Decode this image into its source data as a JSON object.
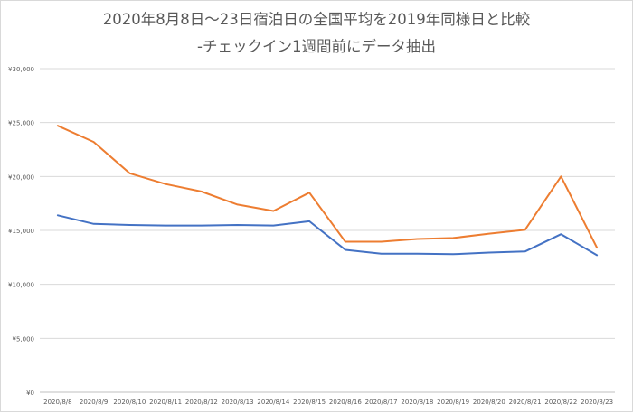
{
  "chart_data": {
    "type": "line",
    "title": "2020年8月8日～23日宿泊日の全国平均を2019年同様日と比較",
    "subtitle": "-チェックイン1週間前にデータ抽出",
    "xlabel": "",
    "ylabel": "",
    "categories": [
      "2020/8/8",
      "2020/8/9",
      "2020/8/10",
      "2020/8/11",
      "2020/8/12",
      "2020/8/13",
      "2020/8/14",
      "2020/8/15",
      "2020/8/16",
      "2020/8/17",
      "2020/8/18",
      "2020/8/19",
      "2020/8/20",
      "2020/8/21",
      "2020/8/22",
      "2020/8/23"
    ],
    "ylim": [
      0,
      30000
    ],
    "ytick_values": [
      0,
      5000,
      10000,
      15000,
      20000,
      25000,
      30000
    ],
    "ytick_labels": [
      "¥0",
      "¥5,000",
      "¥10,000",
      "¥15,000",
      "¥20,000",
      "¥25,000",
      "¥30,000"
    ],
    "grid": true,
    "legend": "none",
    "series": [
      {
        "color": "#4472c4",
        "values": [
          16400,
          15600,
          15500,
          15450,
          15450,
          15500,
          15450,
          15850,
          13200,
          12850,
          12850,
          12800,
          12950,
          13050,
          14650,
          12700
        ]
      },
      {
        "color": "#ed7d31",
        "values": [
          24700,
          23200,
          20300,
          19300,
          18600,
          17400,
          16800,
          18500,
          13950,
          13950,
          14200,
          14300,
          14700,
          15050,
          20000,
          13400
        ]
      }
    ]
  }
}
